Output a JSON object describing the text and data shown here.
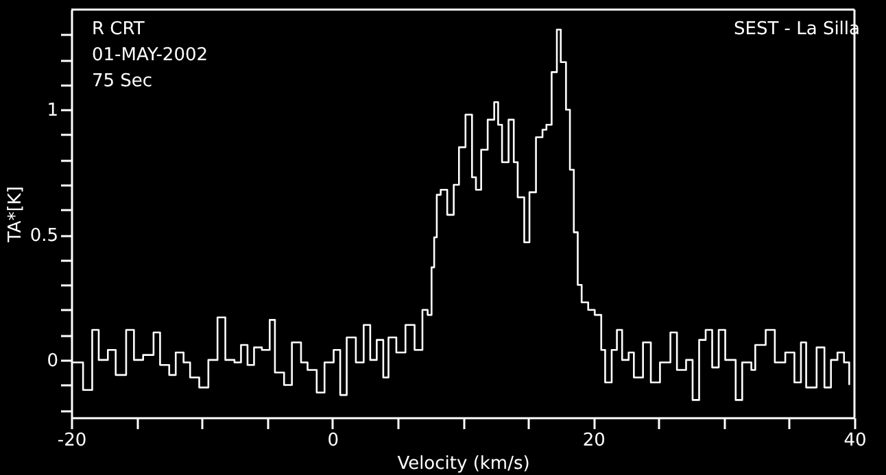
{
  "chart_data": {
    "type": "step",
    "xlabel": "Velocity (km/s)",
    "ylabel": "TA*[K]",
    "annotations": [
      "R CRT",
      "01-MAY-2002",
      "75 Sec",
      "SEST - La Silla"
    ],
    "x": [
      -19.9,
      -19.1,
      -18.4,
      -17.9,
      -17.2,
      -16.6,
      -15.8,
      -15.2,
      -14.5,
      -13.7,
      -13.2,
      -12.5,
      -12.0,
      -11.4,
      -10.9,
      -10.2,
      -9.5,
      -8.8,
      -8.2,
      -7.5,
      -7.0,
      -6.5,
      -6.0,
      -5.4,
      -4.8,
      -4.4,
      -3.7,
      -3.1,
      -2.4,
      -1.9,
      -1.2,
      -0.6,
      0.1,
      0.6,
      1.1,
      1.8,
      2.4,
      2.9,
      3.4,
      3.9,
      4.3,
      4.9,
      5.6,
      6.3,
      6.9,
      7.3,
      7.6,
      7.8,
      8.0,
      8.3,
      8.8,
      9.3,
      9.7,
      10.2,
      10.7,
      11.0,
      11.4,
      11.9,
      12.4,
      12.7,
      13.0,
      13.5,
      13.9,
      14.2,
      14.7,
      15.1,
      15.6,
      16.1,
      16.4,
      16.8,
      17.2,
      17.5,
      17.9,
      18.2,
      18.5,
      18.8,
      19.1,
      19.6,
      20.1,
      20.6,
      20.9,
      21.4,
      21.8,
      22.2,
      22.7,
      23.1,
      23.8,
      24.4,
      25.1,
      25.9,
      26.4,
      27.1,
      27.6,
      28.1,
      28.6,
      29.1,
      29.6,
      30.1,
      30.9,
      31.4,
      32.1,
      32.4,
      33.2,
      33.9,
      34.7,
      35.4,
      35.9,
      36.3,
      37.1,
      37.7,
      38.2,
      38.7,
      39.2,
      39.6
    ],
    "series": [
      {
        "color": "#ffffff",
        "values": [
          -0.01,
          -0.12,
          0.12,
          0.0,
          0.04,
          -0.06,
          0.12,
          0.0,
          0.02,
          0.11,
          -0.02,
          -0.06,
          0.03,
          -0.01,
          -0.07,
          -0.11,
          0.0,
          0.17,
          0.0,
          -0.01,
          0.06,
          -0.02,
          0.05,
          0.04,
          0.16,
          -0.05,
          -0.1,
          0.07,
          -0.01,
          -0.04,
          -0.13,
          -0.01,
          0.04,
          -0.14,
          0.09,
          -0.01,
          0.14,
          0.0,
          0.08,
          -0.07,
          0.09,
          0.03,
          0.14,
          0.04,
          0.2,
          0.18,
          0.37,
          0.49,
          0.66,
          0.68,
          0.58,
          0.7,
          0.85,
          0.98,
          0.73,
          0.68,
          0.84,
          0.96,
          1.03,
          0.94,
          0.79,
          0.96,
          0.79,
          0.65,
          0.47,
          0.67,
          0.89,
          0.92,
          0.94,
          1.15,
          1.32,
          1.19,
          1.0,
          0.76,
          0.51,
          0.3,
          0.23,
          0.2,
          0.18,
          0.04,
          -0.09,
          0.04,
          0.12,
          0.0,
          0.03,
          -0.07,
          0.07,
          -0.09,
          -0.01,
          0.11,
          -0.04,
          0.0,
          -0.16,
          0.08,
          0.12,
          -0.03,
          0.12,
          0.0,
          -0.16,
          -0.01,
          -0.04,
          0.06,
          0.12,
          -0.01,
          0.03,
          -0.09,
          0.07,
          -0.11,
          0.05,
          -0.11,
          0.0,
          0.03,
          -0.01,
          -0.1
        ]
      }
    ],
    "xlim": [
      -20,
      40
    ],
    "ylim": [
      -0.23,
      1.4
    ],
    "xticks": [
      -20,
      {
        "value": -15,
        "label": null
      },
      {
        "value": -10,
        "label": null
      },
      {
        "value": -5,
        "label": null
      },
      0,
      {
        "value": 5,
        "label": null
      },
      {
        "value": 10,
        "label": null
      },
      {
        "value": 15,
        "label": null
      },
      20,
      {
        "value": 25,
        "label": null
      },
      {
        "value": 30,
        "label": null
      },
      {
        "value": 35,
        "label": null
      },
      40
    ],
    "yticks": [
      {
        "value": -0.2,
        "label": null
      },
      {
        "value": -0.1,
        "label": null
      },
      0,
      {
        "value": 0.1,
        "label": null
      },
      {
        "value": 0.2,
        "label": null
      },
      {
        "value": 0.3,
        "label": null
      },
      {
        "value": 0.4,
        "label": null
      },
      0.5,
      {
        "value": 0.6,
        "label": null
      },
      {
        "value": 0.7,
        "label": null
      },
      {
        "value": 0.8,
        "label": null
      },
      {
        "value": 0.9,
        "label": null
      },
      1,
      {
        "value": 1.1,
        "label": null
      },
      {
        "value": 1.2,
        "label": null
      },
      {
        "value": 1.3,
        "label": null
      }
    ],
    "grid": false
  }
}
